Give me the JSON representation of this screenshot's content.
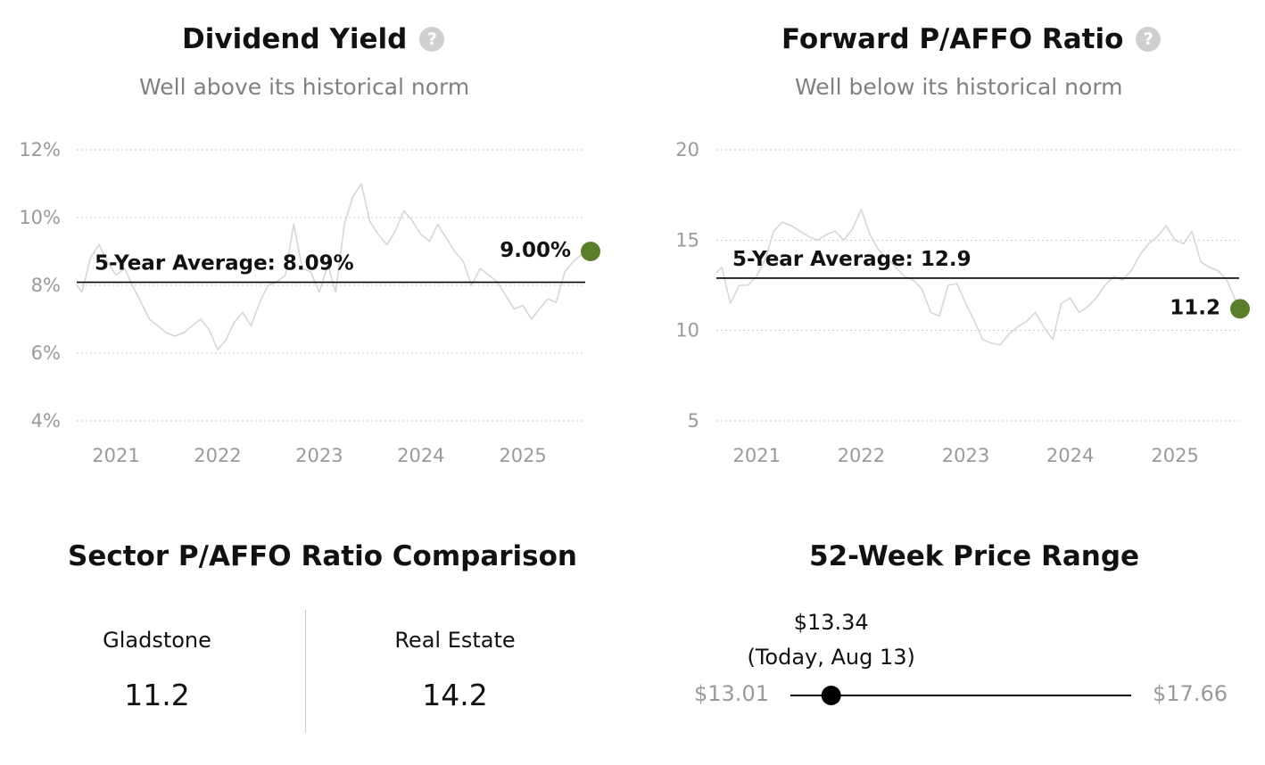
{
  "chart_data": [
    {
      "type": "line",
      "title": "Dividend Yield",
      "subtitle": "Well above its historical norm",
      "y_ticks": [
        "12%",
        "10%",
        "8%",
        "6%",
        "4%"
      ],
      "y_tick_values": [
        12,
        10,
        8,
        6,
        4
      ],
      "ylim": [
        4,
        12
      ],
      "x_ticks": [
        "2021",
        "2022",
        "2023",
        "2024",
        "2025"
      ],
      "xlim": [
        "2020-08-13",
        "2025-08-13"
      ],
      "grid": "horizontal dotted",
      "series_color": "#d6d6d6",
      "x": [
        "2020-08-13",
        "2020-09-01",
        "2020-10-01",
        "2020-11-01",
        "2020-12-01",
        "2021-01-01",
        "2021-02-01",
        "2021-03-01",
        "2021-04-01",
        "2021-05-01",
        "2021-06-01",
        "2021-07-01",
        "2021-08-01",
        "2021-09-01",
        "2021-10-01",
        "2021-11-01",
        "2021-12-01",
        "2022-01-01",
        "2022-02-01",
        "2022-03-01",
        "2022-04-01",
        "2022-05-01",
        "2022-06-01",
        "2022-07-01",
        "2022-08-01",
        "2022-09-01",
        "2022-10-01",
        "2022-11-01",
        "2022-12-01",
        "2023-01-01",
        "2023-02-01",
        "2023-03-01",
        "2023-04-01",
        "2023-05-01",
        "2023-06-01",
        "2023-07-01",
        "2023-08-01",
        "2023-09-01",
        "2023-10-01",
        "2023-11-01",
        "2023-12-01",
        "2024-01-01",
        "2024-02-01",
        "2024-03-01",
        "2024-04-01",
        "2024-05-01",
        "2024-06-01",
        "2024-07-01",
        "2024-08-01",
        "2024-09-01",
        "2024-10-01",
        "2024-11-01",
        "2024-12-01",
        "2025-01-01",
        "2025-02-01",
        "2025-03-01",
        "2025-04-01",
        "2025-05-01",
        "2025-06-01",
        "2025-07-01",
        "2025-08-13"
      ],
      "values": [
        8.0,
        7.8,
        8.8,
        9.2,
        8.7,
        8.3,
        8.5,
        8.0,
        7.5,
        7.0,
        6.8,
        6.6,
        6.5,
        6.6,
        6.8,
        7.0,
        6.7,
        6.1,
        6.4,
        6.9,
        7.2,
        6.8,
        7.5,
        8.0,
        8.1,
        8.3,
        9.8,
        8.5,
        8.4,
        7.8,
        8.6,
        7.8,
        9.8,
        10.6,
        11.0,
        9.9,
        9.5,
        9.2,
        9.6,
        10.2,
        9.9,
        9.5,
        9.3,
        9.8,
        9.4,
        9.0,
        8.7,
        8.0,
        8.5,
        8.3,
        8.1,
        7.7,
        7.3,
        7.4,
        7.0,
        7.3,
        7.6,
        7.5,
        8.4,
        8.7,
        9.0
      ],
      "average": {
        "value": 8.09,
        "label": "5-Year Average: 8.09%"
      },
      "current": {
        "value": 9.0,
        "label": "9.00%"
      },
      "current_color": "#5a7f2b"
    },
    {
      "type": "line",
      "title": "Forward P/AFFO Ratio",
      "subtitle": "Well below its historical norm",
      "y_ticks": [
        "20",
        "15",
        "10",
        "5"
      ],
      "y_tick_values": [
        20,
        15,
        10,
        5
      ],
      "ylim": [
        5,
        20
      ],
      "x_ticks": [
        "2021",
        "2022",
        "2023",
        "2024",
        "2025"
      ],
      "xlim": [
        "2020-08-13",
        "2025-08-13"
      ],
      "grid": "horizontal dotted",
      "series_color": "#d6d6d6",
      "x": [
        "2020-08-13",
        "2020-09-01",
        "2020-10-01",
        "2020-11-01",
        "2020-12-01",
        "2021-01-01",
        "2021-02-01",
        "2021-03-01",
        "2021-04-01",
        "2021-05-01",
        "2021-06-01",
        "2021-07-01",
        "2021-08-01",
        "2021-09-01",
        "2021-10-01",
        "2021-11-01",
        "2021-12-01",
        "2022-01-01",
        "2022-02-01",
        "2022-03-01",
        "2022-04-01",
        "2022-05-01",
        "2022-06-01",
        "2022-07-01",
        "2022-08-01",
        "2022-09-01",
        "2022-10-01",
        "2022-11-01",
        "2022-12-01",
        "2023-01-01",
        "2023-02-01",
        "2023-03-01",
        "2023-04-01",
        "2023-05-01",
        "2023-06-01",
        "2023-07-01",
        "2023-08-01",
        "2023-09-01",
        "2023-10-01",
        "2023-11-01",
        "2023-12-01",
        "2024-01-01",
        "2024-02-01",
        "2024-03-01",
        "2024-04-01",
        "2024-05-01",
        "2024-06-01",
        "2024-07-01",
        "2024-08-01",
        "2024-09-01",
        "2024-10-01",
        "2024-11-01",
        "2024-12-01",
        "2025-01-01",
        "2025-02-01",
        "2025-03-01",
        "2025-04-01",
        "2025-05-01",
        "2025-06-01",
        "2025-07-01",
        "2025-08-13"
      ],
      "values": [
        13.2,
        13.5,
        11.5,
        12.5,
        12.5,
        13.0,
        14.0,
        15.5,
        16.0,
        15.8,
        15.5,
        15.2,
        15.0,
        15.3,
        15.5,
        15.0,
        15.6,
        16.7,
        15.3,
        14.5,
        14.0,
        13.5,
        13.0,
        12.8,
        12.3,
        11.0,
        10.8,
        12.5,
        12.6,
        11.5,
        10.5,
        9.5,
        9.3,
        9.2,
        9.8,
        10.2,
        10.5,
        11.0,
        10.2,
        9.5,
        11.5,
        11.8,
        11.0,
        11.3,
        11.8,
        12.5,
        13.0,
        12.8,
        13.3,
        14.2,
        14.8,
        15.2,
        15.8,
        15.0,
        14.8,
        15.5,
        13.8,
        13.5,
        13.3,
        12.8,
        11.2
      ],
      "average": {
        "value": 12.9,
        "label": "5-Year Average: 12.9"
      },
      "current": {
        "value": 11.2,
        "label": "11.2"
      },
      "current_color": "#5a7f2b"
    }
  ],
  "sector_comparison": {
    "title": "Sector P/AFFO Ratio Comparison",
    "items": [
      {
        "label": "Gladstone",
        "value": "11.2"
      },
      {
        "label": "Real Estate",
        "value": "14.2"
      }
    ]
  },
  "price_range": {
    "title": "52-Week Price Range",
    "current_price": "$13.34",
    "current_note": "(Today, Aug 13)",
    "low": "$13.01",
    "high": "$17.66",
    "low_value": 13.01,
    "high_value": 17.66,
    "current_value": 13.34,
    "marker_color": "#000000"
  }
}
